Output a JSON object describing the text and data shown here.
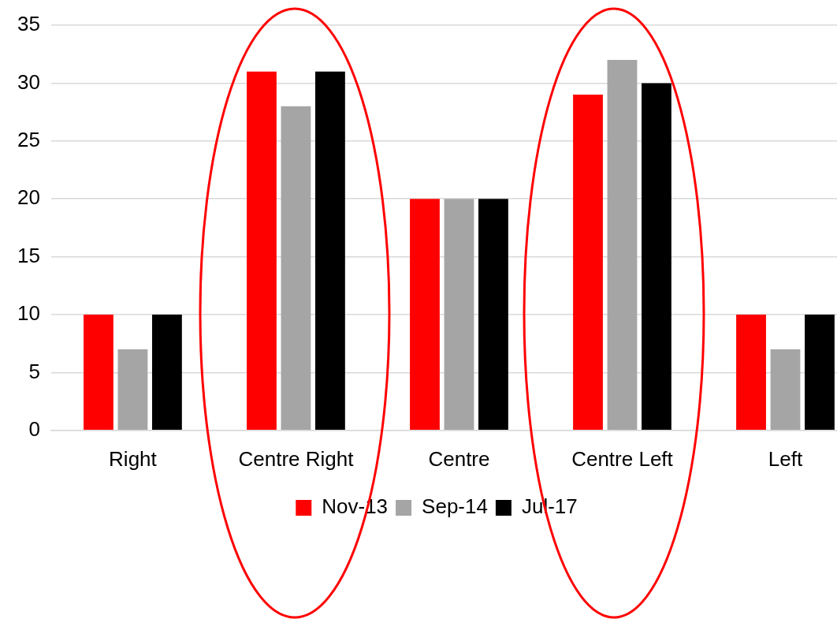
{
  "chart_data": {
    "type": "bar",
    "categories": [
      "Right",
      "Centre Right",
      "Centre",
      "Centre Left",
      "Left"
    ],
    "series": [
      {
        "name": "Nov-13",
        "color": "#ff0000",
        "values": [
          10,
          31,
          20,
          29,
          10
        ]
      },
      {
        "name": "Sep-14",
        "color": "#a5a5a5",
        "values": [
          7,
          28,
          20,
          32,
          7
        ]
      },
      {
        "name": "Jul-17",
        "color": "#000000",
        "values": [
          10,
          31,
          20,
          30,
          10
        ]
      }
    ],
    "ylim": [
      0,
      35
    ],
    "yticks": [
      0,
      5,
      10,
      15,
      20,
      25,
      30,
      35
    ],
    "grid": "y",
    "legend": "bottom"
  }
}
